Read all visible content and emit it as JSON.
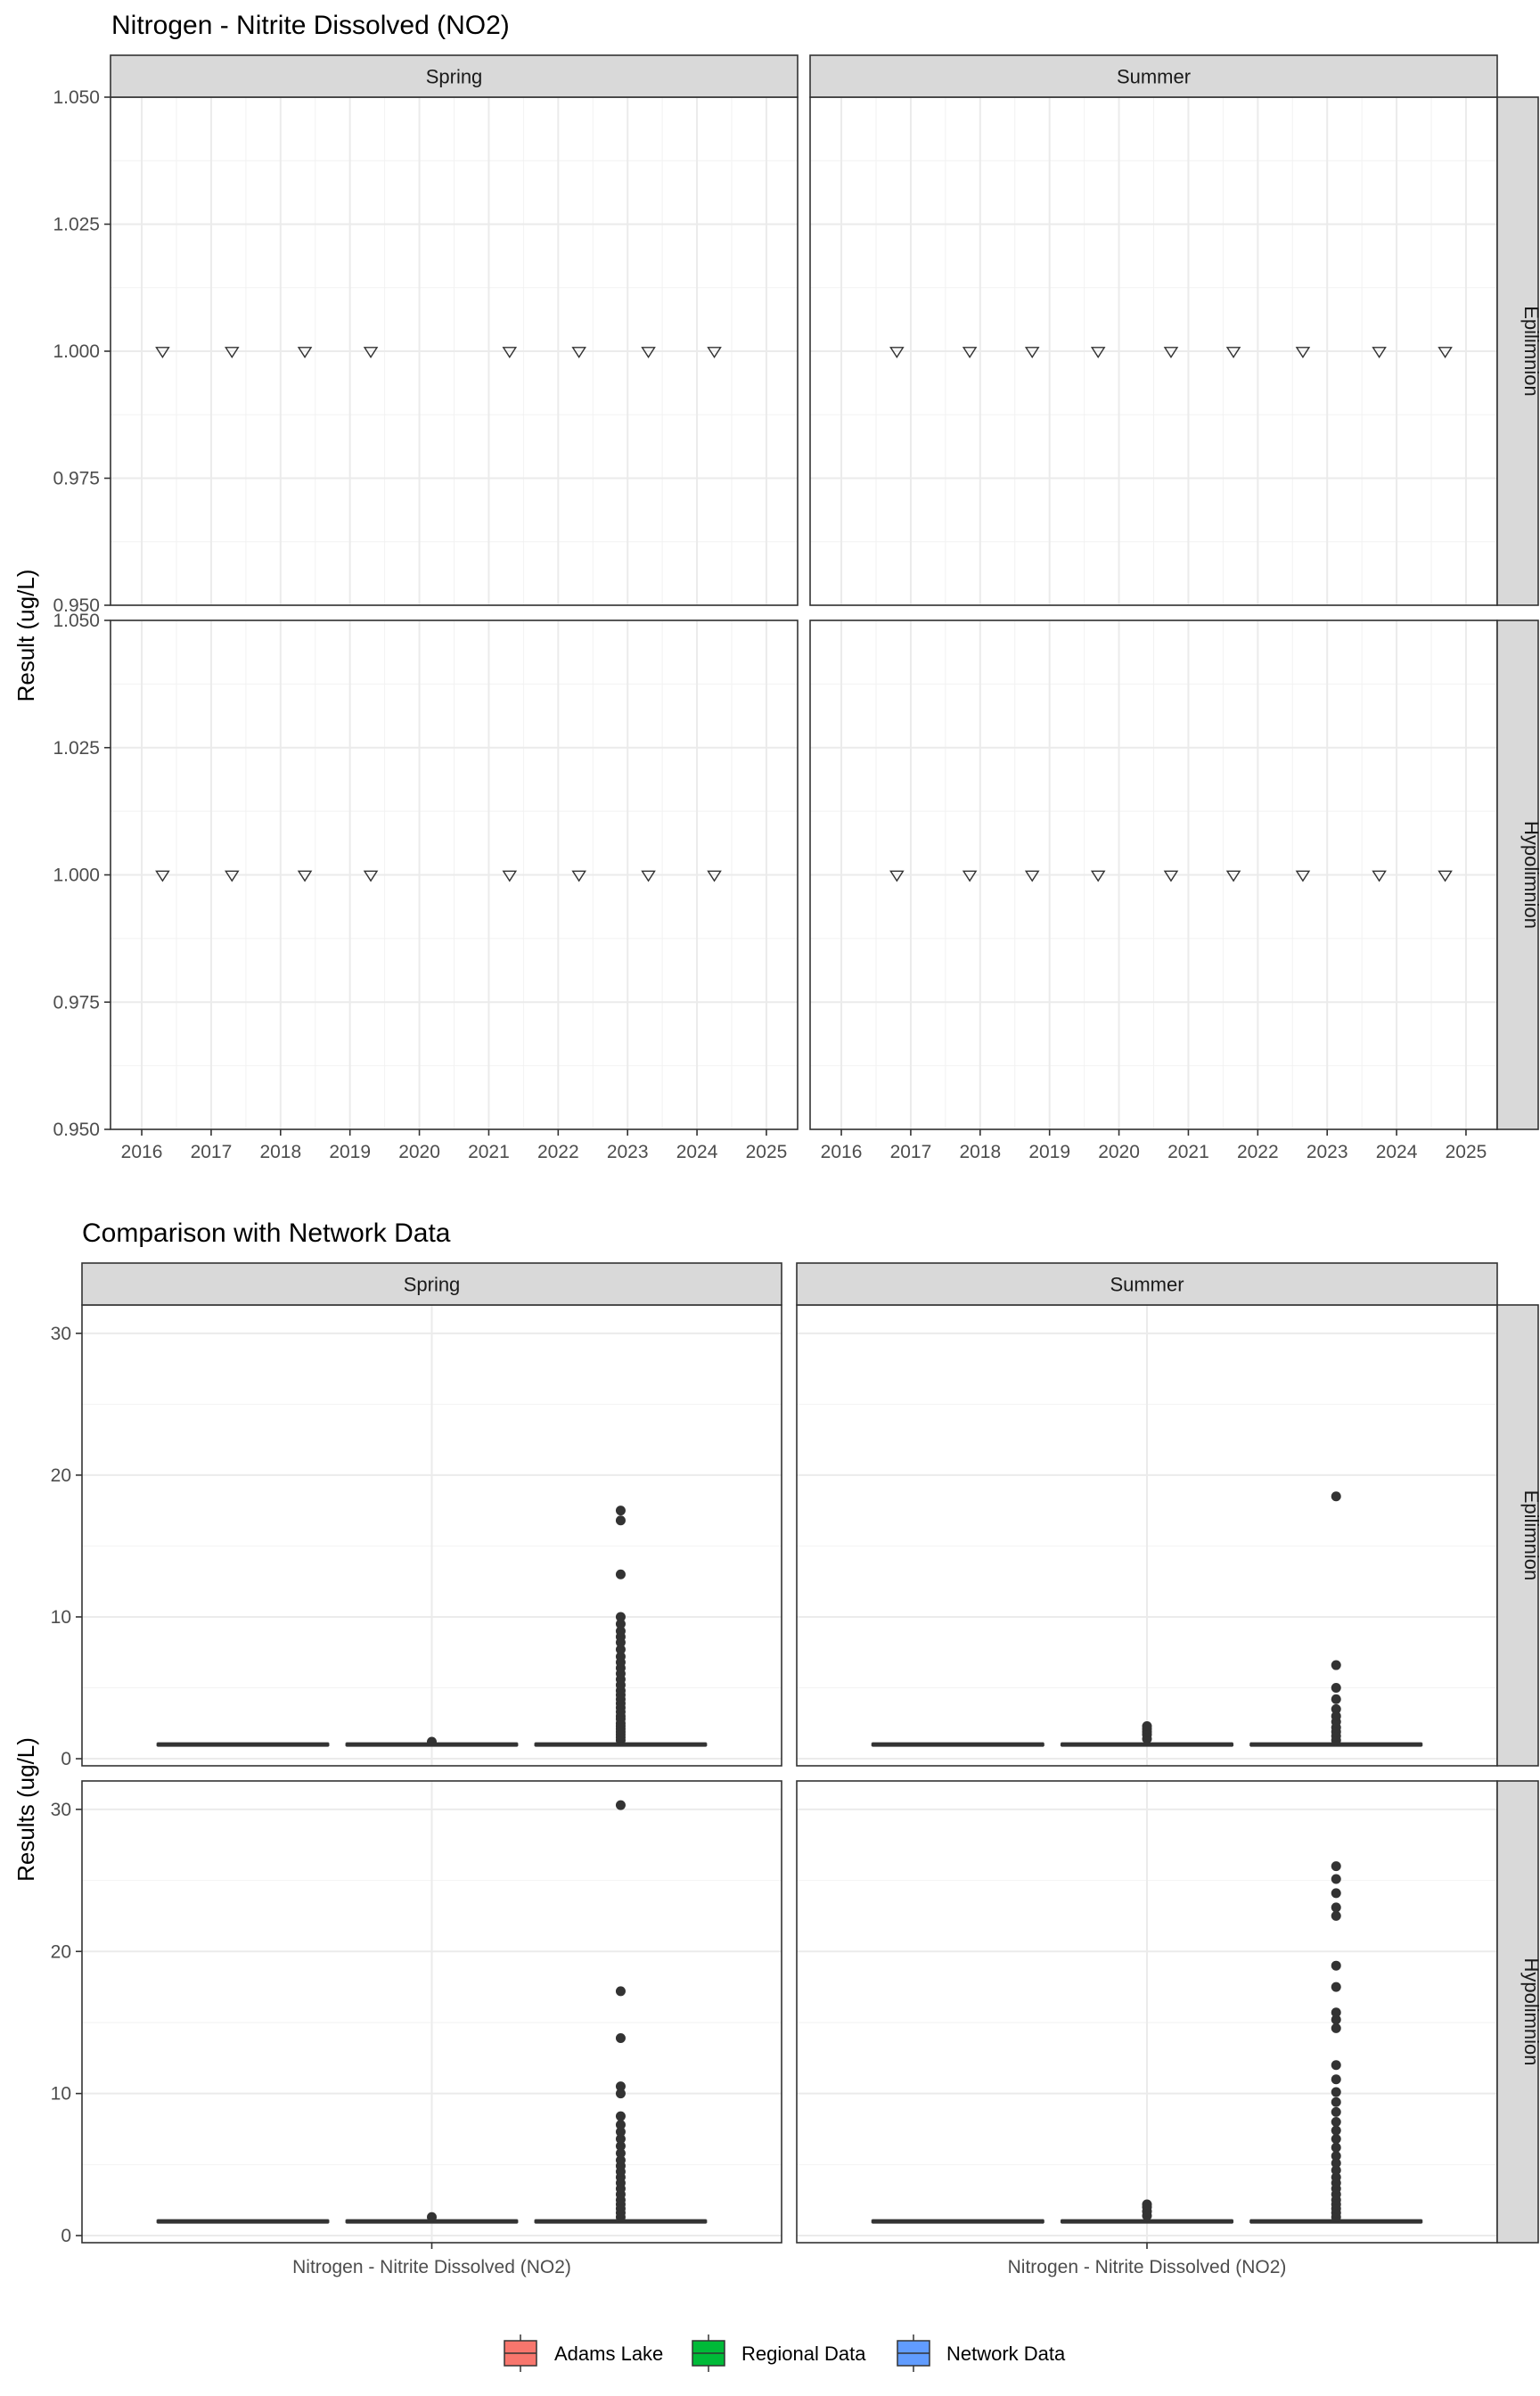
{
  "chart_data": [
    {
      "type": "scatter",
      "title": "Nitrogen - Nitrite Dissolved (NO2)",
      "ylabel": "Result (ug/L)",
      "xlabel": "",
      "marker": "open-triangle-down",
      "facet_columns": [
        "Spring",
        "Summer"
      ],
      "facet_rows": [
        "Epilimnion",
        "Hypolimnion"
      ],
      "x_ticks": [
        "2016",
        "2017",
        "2018",
        "2019",
        "2020",
        "2021",
        "2022",
        "2023",
        "2024",
        "2025"
      ],
      "y_ticks": [
        "0.950",
        "0.975",
        "1.000",
        "1.025",
        "1.050"
      ],
      "xlim": [
        2015.55,
        2025.45
      ],
      "ylim": [
        0.95,
        1.05
      ],
      "grid": true,
      "panels": [
        {
          "column": "Spring",
          "row": "Epilimnion",
          "x": [
            2016.3,
            2017.3,
            2018.35,
            2019.3,
            2021.3,
            2022.3,
            2023.3,
            2024.25
          ],
          "y": [
            1,
            1,
            1,
            1,
            1,
            1,
            1,
            1
          ]
        },
        {
          "column": "Summer",
          "row": "Epilimnion",
          "x": [
            2016.8,
            2017.85,
            2018.75,
            2019.7,
            2020.75,
            2021.65,
            2022.65,
            2023.75,
            2024.7
          ],
          "y": [
            1,
            1,
            1,
            1,
            1,
            1,
            1,
            1,
            1
          ]
        },
        {
          "column": "Spring",
          "row": "Hypolimnion",
          "x": [
            2016.3,
            2017.3,
            2018.35,
            2019.3,
            2021.3,
            2022.3,
            2023.3,
            2024.25
          ],
          "y": [
            1,
            1,
            1,
            1,
            1,
            1,
            1,
            1
          ]
        },
        {
          "column": "Summer",
          "row": "Hypolimnion",
          "x": [
            2016.8,
            2017.85,
            2018.75,
            2019.7,
            2020.75,
            2021.65,
            2022.65,
            2023.75,
            2024.7
          ],
          "y": [
            1,
            1,
            1,
            1,
            1,
            1,
            1,
            1,
            1
          ]
        }
      ]
    },
    {
      "type": "box",
      "title": "Comparison with Network Data",
      "ylabel": "Results (ug/L)",
      "xlabel": "",
      "category": "Nitrogen - Nitrite Dissolved (NO2)",
      "facet_columns": [
        "Spring",
        "Summer"
      ],
      "facet_rows": [
        "Epilimnion",
        "Hypolimnion"
      ],
      "y_ticks": [
        "0",
        "10",
        "20",
        "30"
      ],
      "ylim": [
        -0.5,
        32
      ],
      "grid": true,
      "legend_position": "bottom",
      "series": [
        {
          "name": "Adams Lake",
          "color": "#F8766D"
        },
        {
          "name": "Regional Data",
          "color": "#00BA38"
        },
        {
          "name": "Network Data",
          "color": "#619CFF"
        }
      ],
      "panels": [
        {
          "column": "Spring",
          "row": "Epilimnion",
          "boxes": [
            {
              "series": "Adams Lake",
              "q1": 1,
              "median": 1,
              "q3": 1,
              "outliers": []
            },
            {
              "series": "Regional Data",
              "q1": 1,
              "median": 1,
              "q3": 1,
              "outliers": [
                1.2
              ]
            },
            {
              "series": "Network Data",
              "q1": 1,
              "median": 1,
              "q3": 1,
              "outliers": [
                1.3,
                1.5,
                1.7,
                1.9,
                2.1,
                2.3,
                2.5,
                2.8,
                3.0,
                3.3,
                3.6,
                3.9,
                4.2,
                4.5,
                4.8,
                5.2,
                5.6,
                6.0,
                6.4,
                6.8,
                7.2,
                7.7,
                8.2,
                8.6,
                9.0,
                9.5,
                10.0,
                13.0,
                16.8,
                17.5
              ]
            }
          ]
        },
        {
          "column": "Summer",
          "row": "Epilimnion",
          "boxes": [
            {
              "series": "Adams Lake",
              "q1": 1,
              "median": 1,
              "q3": 1,
              "outliers": []
            },
            {
              "series": "Regional Data",
              "q1": 1,
              "median": 1,
              "q3": 1,
              "outliers": [
                1.4,
                1.7,
                1.9,
                2.1,
                2.3
              ]
            },
            {
              "series": "Network Data",
              "q1": 1,
              "median": 1,
              "q3": 1,
              "outliers": [
                1.3,
                1.6,
                1.9,
                2.2,
                2.6,
                3.0,
                3.5,
                4.2,
                5.0,
                6.6,
                18.5
              ]
            }
          ]
        },
        {
          "column": "Spring",
          "row": "Hypolimnion",
          "boxes": [
            {
              "series": "Adams Lake",
              "q1": 1,
              "median": 1,
              "q3": 1,
              "outliers": []
            },
            {
              "series": "Regional Data",
              "q1": 1,
              "median": 1,
              "q3": 1,
              "outliers": [
                1.3
              ]
            },
            {
              "series": "Network Data",
              "q1": 1,
              "median": 1,
              "q3": 1,
              "outliers": [
                1.3,
                1.6,
                1.9,
                2.2,
                2.5,
                2.9,
                3.3,
                3.7,
                4.1,
                4.5,
                4.9,
                5.3,
                5.8,
                6.3,
                6.8,
                7.3,
                7.8,
                8.4,
                10.0,
                10.5,
                13.9,
                17.2,
                30.3
              ]
            }
          ]
        },
        {
          "column": "Summer",
          "row": "Hypolimnion",
          "boxes": [
            {
              "series": "Adams Lake",
              "q1": 1,
              "median": 1,
              "q3": 1,
              "outliers": []
            },
            {
              "series": "Regional Data",
              "q1": 1,
              "median": 1,
              "q3": 1,
              "outliers": [
                1.4,
                1.7,
                2.0,
                2.2
              ]
            },
            {
              "series": "Network Data",
              "q1": 1,
              "median": 1,
              "q3": 1,
              "outliers": [
                1.3,
                1.6,
                1.9,
                2.2,
                2.5,
                2.9,
                3.3,
                3.7,
                4.1,
                4.6,
                5.1,
                5.6,
                6.2,
                6.8,
                7.4,
                8.0,
                8.7,
                9.4,
                10.1,
                11.0,
                12.0,
                14.6,
                15.2,
                15.7,
                17.5,
                19.0,
                22.5,
                23.1,
                24.1,
                25.1,
                26.0
              ]
            }
          ]
        }
      ]
    }
  ]
}
